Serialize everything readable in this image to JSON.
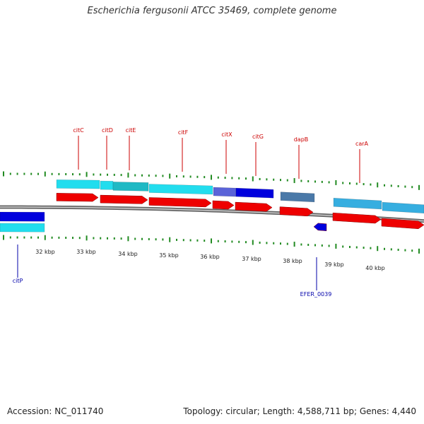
{
  "title": "Escherichia fergusonii ATCC 35469, complete genome",
  "footer": {
    "accession": "Accession: NC_011740",
    "topology": "Topology: circular; Length: 4,588,711 bp; Genes: 4,440"
  },
  "colors": {
    "tick": "#228B22",
    "forward_label": "#cc0000",
    "reverse_label": "#0000aa",
    "cds": "#ee0000",
    "gene_cyan": "#22ddee",
    "gene_blue": "#0000dd",
    "gene_steel": "#4a79a8",
    "backbone": "#888888"
  },
  "coordinate_ticks": [
    "32 kbp",
    "33 kbp",
    "34 kbp",
    "35 kbp",
    "36 kbp",
    "37 kbp",
    "38 kbp",
    "39 kbp",
    "40 kbp"
  ],
  "gene_labels": [
    {
      "name": "citC",
      "strand": "forward"
    },
    {
      "name": "citD",
      "strand": "forward"
    },
    {
      "name": "citE",
      "strand": "forward"
    },
    {
      "name": "citF",
      "strand": "forward"
    },
    {
      "name": "citX",
      "strand": "forward"
    },
    {
      "name": "citG",
      "strand": "forward"
    },
    {
      "name": "dapB",
      "strand": "forward"
    },
    {
      "name": "carA",
      "strand": "forward"
    },
    {
      "name": "citP",
      "strand": "reverse"
    },
    {
      "name": "EFER_0039",
      "strand": "reverse"
    }
  ]
}
